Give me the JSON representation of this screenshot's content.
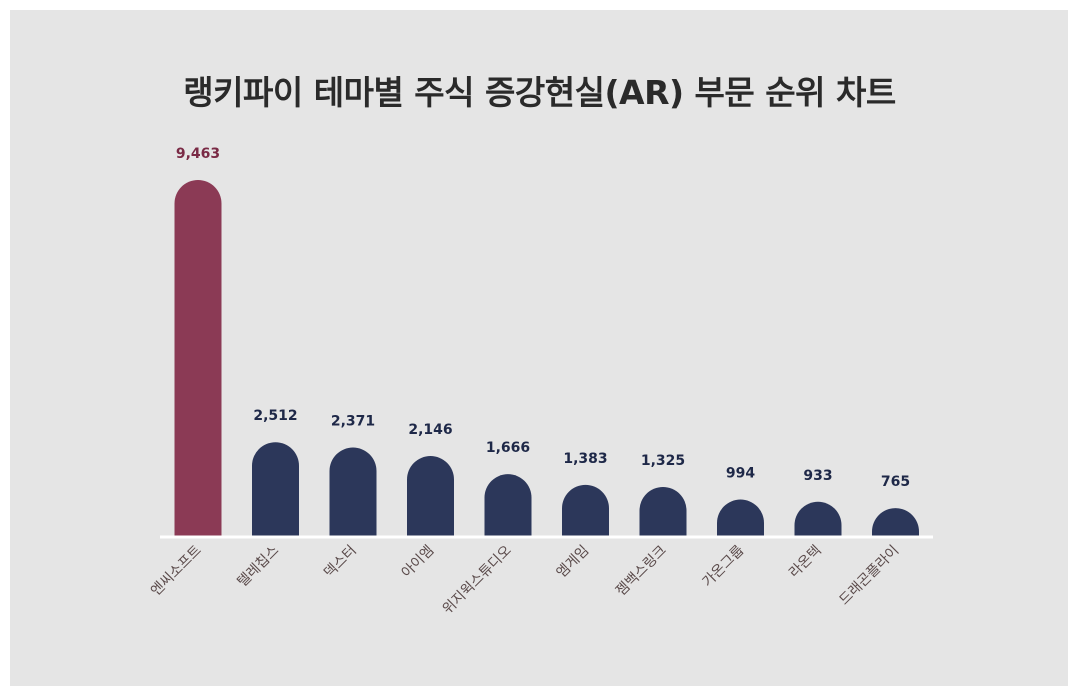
{
  "chart_data": {
    "type": "bar",
    "title": "랭키파이 테마별 주식 증강현실(AR) 부문 순위 차트",
    "categories": [
      "엔씨소프트",
      "텔레칩스",
      "덱스터",
      "아이엠",
      "위지윅스튜디오",
      "엠게임",
      "젬백스링크",
      "가온그룹",
      "라온텍",
      "드래곤플라이"
    ],
    "values": [
      9463,
      2512,
      2371,
      2146,
      1666,
      1383,
      1325,
      994,
      933,
      765
    ],
    "value_labels": [
      "9,463",
      "2,512",
      "2,371",
      "2,146",
      "1,666",
      "1,383",
      "1,325",
      "994",
      "933",
      "765"
    ],
    "xlabel": "",
    "ylabel": "",
    "ylim": [
      0,
      9463
    ],
    "grid": false,
    "legend": "none",
    "colors": {
      "highlight": "#8b3a55",
      "bar": "#2c375a",
      "value_highlight": "#7a2a45",
      "value": "#1e2848",
      "category": "#5a4a4a",
      "baseline": "#ffffff",
      "background": "#e5e5e5"
    }
  }
}
